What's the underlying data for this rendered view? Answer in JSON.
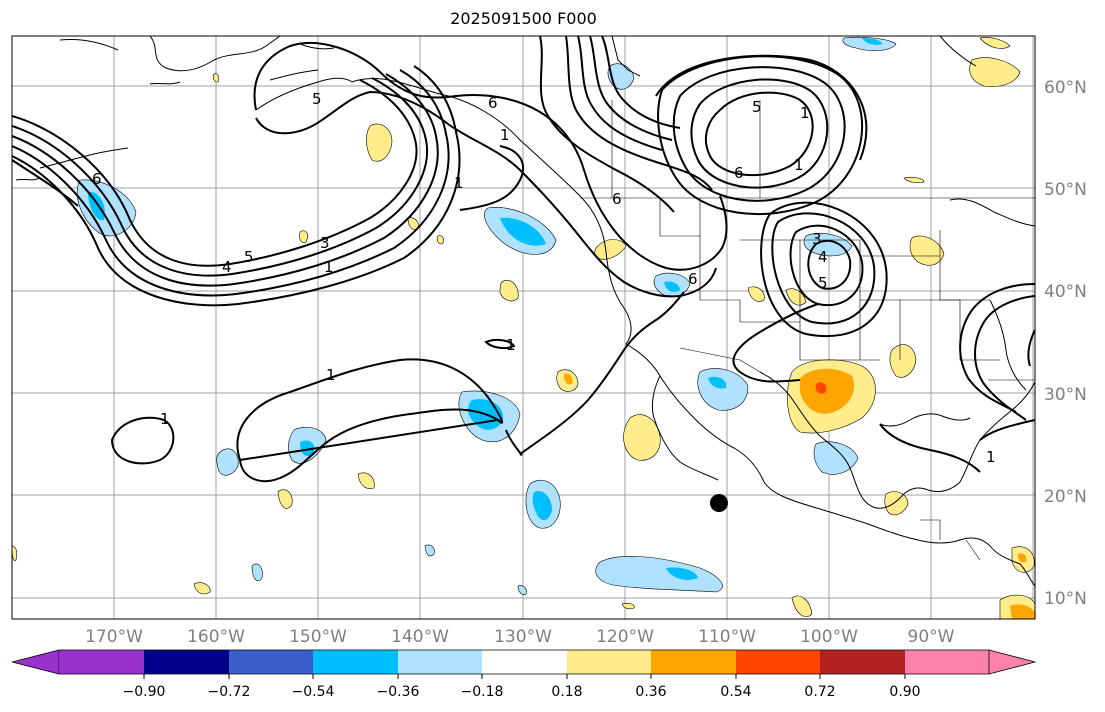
{
  "title": "2025091500 F000",
  "longitude_labels": [
    "170°W",
    "160°W",
    "150°W",
    "140°W",
    "130°W",
    "120°W",
    "110°W",
    "100°W",
    "90°W"
  ],
  "latitude_labels": [
    "60°N",
    "50°N",
    "40°N",
    "30°N",
    "20°N",
    "10°N"
  ],
  "colorbar": {
    "colors": [
      "#9932cc",
      "#00008b",
      "#3a5fcd",
      "#00bfff",
      "#b0e2ff",
      "#ffffff",
      "#ffec8b",
      "#ffa500",
      "#ff4500",
      "#b22222",
      "#ff82ab"
    ],
    "tick_labels": [
      "−0.90",
      "−0.72",
      "−0.54",
      "−0.36",
      "−0.18",
      "0.18",
      "0.36",
      "0.54",
      "0.72",
      "0.90"
    ]
  },
  "contour_labels": [
    "6",
    "5",
    "4",
    "3",
    "1",
    "1",
    "6",
    "5",
    "1",
    "6",
    "6",
    "1",
    "3",
    "1",
    "1",
    "1",
    "4",
    "5",
    "6",
    "1",
    "5",
    "1"
  ],
  "storm_marker": "storm-position-dot"
}
